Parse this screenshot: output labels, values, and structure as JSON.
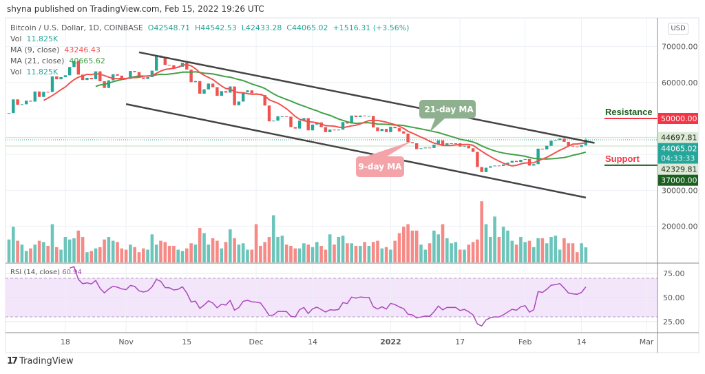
{
  "published": "shyna published on TradingView.com, Feb 15, 2022 19:26 UTC",
  "legend": {
    "symbol": "Bitcoin / U.S. Dollar, 1D, COINBASE",
    "open": "O42548.71",
    "high": "H44542.53",
    "low": "L42433.28",
    "close": "C44065.02",
    "change": "+1516.31 (+3.56%)",
    "vol_label": "Vol",
    "vol_value": "11.825K",
    "ma9_label": "MA (9, close)",
    "ma9_value": "43246.43",
    "ma21_label": "MA (21, close)",
    "ma21_value": "40665.62",
    "vol2_label": "Vol",
    "vol2_value": "11.825K",
    "rsi_label": "RSI (14, close)",
    "rsi_value": "60.94"
  },
  "currency": "USD",
  "brand": "TradingView",
  "colors": {
    "up": "#26a69a",
    "down": "#ef5350",
    "ma9": "#f0524f",
    "ma21": "#43a047",
    "rsi": "#ab47bc",
    "resistance": "#f23645",
    "support": "#1b5e20",
    "trendline": "#444444"
  },
  "chart_data": {
    "type": "candlestick",
    "title": "Bitcoin / U.S. Dollar, 1D, COINBASE",
    "last_candle": {
      "open": 42548.71,
      "high": 44542.53,
      "low": 42433.28,
      "close": 44065.02
    },
    "dates": [
      "2021-10-05",
      "2021-10-06",
      "2021-10-07",
      "2021-10-08",
      "2021-10-09",
      "2021-10-10",
      "2021-10-11",
      "2021-10-12",
      "2021-10-13",
      "2021-10-14",
      "2021-10-15",
      "2021-10-16",
      "2021-10-17",
      "2021-10-18",
      "2021-10-19",
      "2021-10-20",
      "2021-10-21",
      "2021-10-22",
      "2021-10-23",
      "2021-10-24",
      "2021-10-25",
      "2021-10-26",
      "2021-10-27",
      "2021-10-28",
      "2021-10-29",
      "2021-10-30",
      "2021-10-31",
      "2021-11-01",
      "2021-11-02",
      "2021-11-03",
      "2021-11-04",
      "2021-11-05",
      "2021-11-06",
      "2021-11-07",
      "2021-11-08",
      "2021-11-09",
      "2021-11-10",
      "2021-11-11",
      "2021-11-12",
      "2021-11-13",
      "2021-11-14",
      "2021-11-15",
      "2021-11-16",
      "2021-11-17",
      "2021-11-18",
      "2021-11-19",
      "2021-11-20",
      "2021-11-21",
      "2021-11-22",
      "2021-11-23",
      "2021-11-24",
      "2021-11-25",
      "2021-11-26",
      "2021-11-27",
      "2021-11-28",
      "2021-11-29",
      "2021-11-30",
      "2021-12-01",
      "2021-12-02",
      "2021-12-03",
      "2021-12-04",
      "2021-12-05",
      "2021-12-06",
      "2021-12-07",
      "2021-12-08",
      "2021-12-09",
      "2021-12-10",
      "2021-12-11",
      "2021-12-12",
      "2021-12-13",
      "2021-12-14",
      "2021-12-15",
      "2021-12-16",
      "2021-12-17",
      "2021-12-18",
      "2021-12-19",
      "2021-12-20",
      "2021-12-21",
      "2021-12-22",
      "2021-12-23",
      "2021-12-24",
      "2021-12-25",
      "2021-12-26",
      "2021-12-27",
      "2021-12-28",
      "2021-12-29",
      "2021-12-30",
      "2021-12-31",
      "2022-01-01",
      "2022-01-02",
      "2022-01-03",
      "2022-01-04",
      "2022-01-05",
      "2022-01-06",
      "2022-01-07",
      "2022-01-08",
      "2022-01-09",
      "2022-01-10",
      "2022-01-11",
      "2022-01-12",
      "2022-01-13",
      "2022-01-14",
      "2022-01-15",
      "2022-01-16",
      "2022-01-17",
      "2022-01-18",
      "2022-01-19",
      "2022-01-20",
      "2022-01-21",
      "2022-01-22",
      "2022-01-23",
      "2022-01-24",
      "2022-01-25",
      "2022-01-26",
      "2022-01-27",
      "2022-01-28",
      "2022-01-29",
      "2022-01-30",
      "2022-01-31",
      "2022-02-01",
      "2022-02-02",
      "2022-02-03",
      "2022-02-04",
      "2022-02-05",
      "2022-02-06",
      "2022-02-07",
      "2022-02-08",
      "2022-02-09",
      "2022-02-10",
      "2022-02-11",
      "2022-02-12",
      "2022-02-13",
      "2022-02-14",
      "2022-02-15"
    ],
    "close": [
      51500,
      55300,
      53800,
      53950,
      54950,
      54700,
      57500,
      56000,
      57400,
      57350,
      61700,
      60900,
      61500,
      62000,
      64300,
      66000,
      62200,
      60700,
      61300,
      60900,
      63100,
      60350,
      58500,
      60600,
      62300,
      61900,
      61300,
      61000,
      63200,
      62900,
      61400,
      61000,
      61500,
      63300,
      67500,
      66900,
      64900,
      64800,
      64100,
      64400,
      65500,
      63600,
      60100,
      60400,
      56900,
      58100,
      59700,
      58700,
      56300,
      57600,
      57200,
      58900,
      53700,
      54700,
      57300,
      57800,
      57000,
      56900,
      56500,
      53600,
      49200,
      49400,
      50600,
      50600,
      50500,
      47600,
      47200,
      49400,
      50100,
      46700,
      48300,
      48900,
      47600,
      46200,
      46900,
      46700,
      46900,
      49000,
      48600,
      50800,
      50400,
      50800,
      50700,
      50700,
      47500,
      46500,
      47100,
      46200,
      47700,
      47300,
      46400,
      45800,
      43400,
      43100,
      41500,
      41700,
      41900,
      41800,
      42700,
      43900,
      42600,
      43100,
      43100,
      43100,
      42200,
      42400,
      41700,
      40700,
      36500,
      35100,
      36300,
      36700,
      36900,
      36800,
      37200,
      37700,
      38200,
      37900,
      38500,
      38700,
      36900,
      37300,
      41600,
      41400,
      42400,
      43800,
      44000,
      44400,
      43500,
      42400,
      42200,
      42100,
      42550,
      44065.02
    ],
    "volume_k": [
      18,
      28,
      17,
      14,
      9,
      11,
      14,
      17,
      16,
      13,
      30,
      12,
      10,
      20,
      18,
      19,
      25,
      20,
      8,
      9,
      11,
      12,
      18,
      20,
      17,
      16,
      11,
      10,
      14,
      12,
      8,
      11,
      10,
      22,
      14,
      17,
      16,
      13,
      13,
      10,
      9,
      11,
      15,
      14,
      27,
      23,
      14,
      19,
      17,
      11,
      16,
      26,
      19,
      14,
      15,
      10,
      10,
      30,
      13,
      16,
      20,
      37,
      20,
      21,
      14,
      13,
      11,
      11,
      15,
      14,
      12,
      16,
      13,
      10,
      22,
      14,
      20,
      21,
      15,
      15,
      13,
      13,
      16,
      13,
      16,
      17,
      11,
      12,
      10,
      17,
      23,
      28,
      30,
      25,
      25,
      14,
      10,
      15,
      25,
      22,
      30,
      19,
      15,
      16,
      10,
      10,
      14,
      16,
      18,
      48,
      30,
      20,
      36,
      20,
      28,
      25,
      17,
      14,
      20,
      16,
      17,
      12,
      19,
      19,
      15,
      20,
      21,
      10,
      19,
      15,
      15,
      8,
      15,
      11.825
    ],
    "ma_periods": [
      9,
      21
    ],
    "rsi_period": 14,
    "rsi_bands": [
      30,
      70
    ],
    "price_ticks": [
      "70000.00",
      "60000.00",
      "30000.00",
      "20000.00"
    ],
    "price_gridlines": [
      70000,
      60000,
      50000,
      40000,
      30000,
      20000
    ],
    "rsi_ticks": [
      {
        "v": 75,
        "label": "75.00"
      },
      {
        "v": 50,
        "label": "50.00"
      },
      {
        "v": 25,
        "label": "25.00"
      }
    ],
    "x_ticks": [
      {
        "date": "2021-10-18",
        "label": "18"
      },
      {
        "date": "2021-11-01",
        "label": "Nov"
      },
      {
        "date": "2021-11-15",
        "label": "15"
      },
      {
        "date": "2021-12-01",
        "label": "Dec"
      },
      {
        "date": "2021-12-14",
        "label": "14"
      },
      {
        "date": "2022-01-01",
        "label": "2022",
        "bold": true
      },
      {
        "date": "2022-01-17",
        "label": "17"
      },
      {
        "date": "2022-02-01",
        "label": "Feb"
      },
      {
        "date": "2022-02-14",
        "label": "14"
      },
      {
        "date": "2022-03-01",
        "label": "Mar"
      }
    ],
    "trendlines": [
      {
        "from": {
          "date": "2021-11-04",
          "price": 68400
        },
        "to": {
          "date": "2022-02-17",
          "price": 43200
        }
      },
      {
        "from": {
          "date": "2021-11-01",
          "price": 54000
        },
        "to": {
          "date": "2022-02-15",
          "price": 28000
        }
      }
    ],
    "levels": [
      {
        "name": "Resistance",
        "price": 50000,
        "label": "50000.00",
        "color": "#f23645",
        "text_color": "#1b5e20"
      },
      {
        "name": "Support",
        "price": 37000,
        "label": "37000.00",
        "color": "#1b5e20",
        "text_color": "#f23645"
      }
    ],
    "price_labels": [
      {
        "label": "44697.81",
        "price": 44697.81,
        "kind": "high"
      },
      {
        "label": "44065.02",
        "sub": "04:33:33",
        "price": 44065.02,
        "kind": "last"
      },
      {
        "label": "42329.81",
        "price": 42329.81,
        "kind": "low"
      }
    ],
    "callouts": [
      {
        "text": "21-day MA",
        "color": "#8fb08f"
      },
      {
        "text": "9-day MA",
        "color": "#f4a3a8"
      }
    ]
  }
}
